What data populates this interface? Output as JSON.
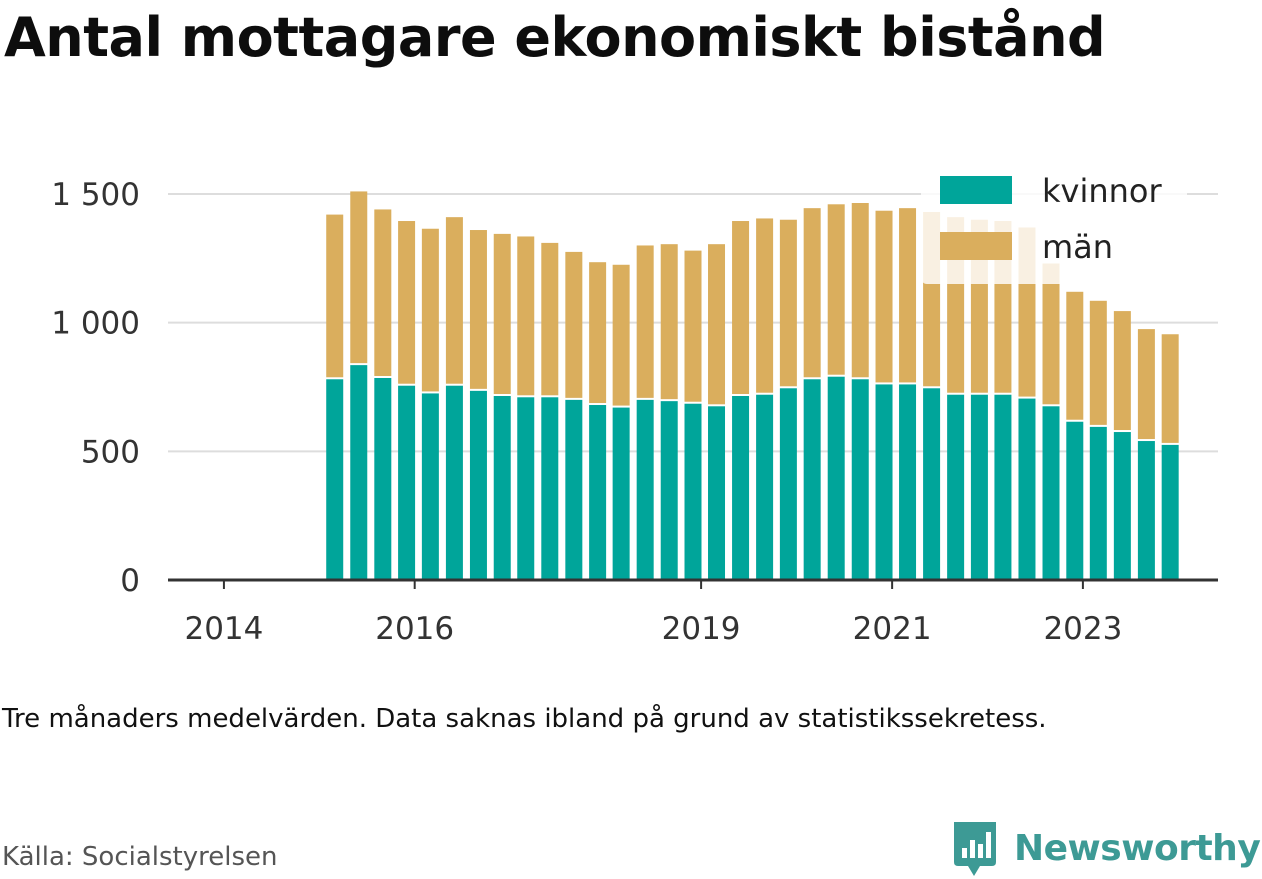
{
  "title": "Antal mottagare ekonomiskt bistånd",
  "note": "Tre månaders medelvärden. Data saknas ibland på grund av statistikssekretess.",
  "source": "Källa: Socialstyrelsen",
  "brand": "Newsworthy",
  "colors": {
    "kvinnor": "#00a59a",
    "man": "#daae5d",
    "grid": "#dddddd",
    "axis": "#333333",
    "brand": "#3d9a95"
  },
  "chart_data": {
    "type": "bar",
    "stacked": true,
    "x": [
      "2015-03",
      "2015-06",
      "2015-09",
      "2015-12",
      "2016-03",
      "2016-06",
      "2016-09",
      "2016-12",
      "2017-03",
      "2017-06",
      "2017-09",
      "2017-12",
      "2018-03",
      "2018-06",
      "2018-09",
      "2018-12",
      "2019-03",
      "2019-06",
      "2019-09",
      "2019-12",
      "2020-03",
      "2020-06",
      "2020-09",
      "2020-12",
      "2021-03",
      "2021-06",
      "2021-09",
      "2021-12",
      "2022-03",
      "2022-06",
      "2022-09",
      "2022-12",
      "2023-03",
      "2023-06",
      "2023-09",
      "2023-12",
      "2024-03",
      "2024-06",
      "2024-09"
    ],
    "series": [
      {
        "name": "kvinnor",
        "values": [
          780,
          835,
          785,
          755,
          725,
          755,
          735,
          715,
          710,
          710,
          700,
          680,
          670,
          700,
          695,
          685,
          675,
          715,
          720,
          745,
          780,
          790,
          780,
          760,
          760,
          745,
          720,
          720,
          720,
          705,
          675,
          615,
          595,
          575,
          540,
          525,
          0,
          0,
          0
        ]
      },
      {
        "name": "män",
        "values": [
          640,
          675,
          655,
          640,
          640,
          655,
          625,
          630,
          625,
          600,
          575,
          555,
          555,
          600,
          610,
          595,
          630,
          680,
          685,
          655,
          665,
          670,
          685,
          675,
          685,
          685,
          690,
          680,
          675,
          665,
          555,
          505,
          490,
          470,
          435,
          430,
          0,
          0,
          0
        ]
      }
    ],
    "xticks": [
      "2014",
      "2016",
      "2019",
      "2021",
      "2023"
    ],
    "yticks": [
      "0",
      "500",
      "1 000",
      "1 500"
    ],
    "ylim": [
      0,
      1620
    ],
    "legend": "top-right",
    "grid": true
  }
}
